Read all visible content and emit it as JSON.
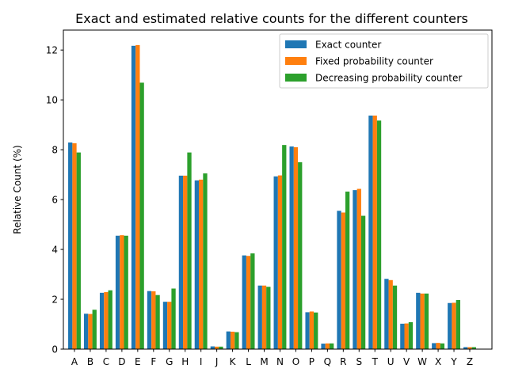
{
  "chart_data": {
    "type": "bar",
    "title": "Exact and estimated relative counts for the different counters",
    "xlabel": "",
    "ylabel": "Relative Count (%)",
    "ylim": [
      0,
      12.8
    ],
    "yticks": [
      0,
      2,
      4,
      6,
      8,
      10,
      12
    ],
    "legend_position": "top-right",
    "grid": false,
    "categories": [
      "A",
      "B",
      "C",
      "D",
      "E",
      "F",
      "G",
      "H",
      "I",
      "J",
      "K",
      "L",
      "M",
      "N",
      "O",
      "P",
      "Q",
      "R",
      "S",
      "T",
      "U",
      "V",
      "W",
      "X",
      "Y",
      "Z"
    ],
    "series": [
      {
        "name": "Exact counter",
        "color": "#1f77b4",
        "values": [
          8.29,
          1.42,
          2.26,
          4.55,
          12.17,
          2.33,
          1.9,
          6.96,
          6.77,
          0.11,
          0.71,
          3.76,
          2.55,
          6.93,
          8.13,
          1.48,
          0.22,
          5.55,
          6.38,
          9.37,
          2.82,
          1.02,
          2.26,
          0.24,
          1.85,
          0.08
        ]
      },
      {
        "name": "Fixed probability counter",
        "color": "#ff7f0e",
        "values": [
          8.26,
          1.41,
          2.29,
          4.57,
          12.2,
          2.32,
          1.9,
          6.96,
          6.8,
          0.1,
          0.7,
          3.74,
          2.55,
          6.97,
          8.1,
          1.51,
          0.23,
          5.48,
          6.43,
          9.37,
          2.77,
          1.03,
          2.23,
          0.25,
          1.86,
          0.08
        ]
      },
      {
        "name": "Decreasing probability counter",
        "color": "#2ca02c",
        "values": [
          7.89,
          1.58,
          2.36,
          4.55,
          10.69,
          2.17,
          2.43,
          7.89,
          7.05,
          0.1,
          0.68,
          3.84,
          2.5,
          8.19,
          7.5,
          1.47,
          0.23,
          6.32,
          5.35,
          9.17,
          2.55,
          1.08,
          2.23,
          0.23,
          1.97,
          0.08
        ]
      }
    ]
  }
}
